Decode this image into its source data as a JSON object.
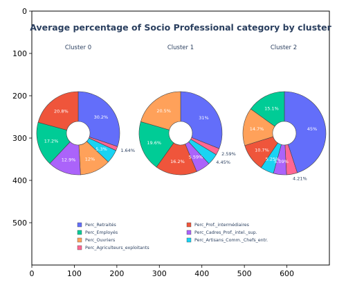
{
  "chart_data": {
    "type": "pie",
    "title": "Average percentage of Socio Professional category by cluster",
    "legend": {
      "placement": "bottom-center",
      "entries": [
        "Perc_Retraités",
        "Perc_Employés",
        "Perc_Ouvriers",
        "Perc_Agriculteurs_exploitants",
        "Perc_Prof._intermédiaires",
        "Perc_Cadres_Prof._intel._sup.",
        "Perc_Artisans_Comm._Chefs_entr."
      ]
    },
    "axes": {
      "x": {
        "range": [
          0,
          700
        ],
        "ticks": [
          "0",
          "100",
          "200",
          "300",
          "400",
          "500",
          "600"
        ]
      },
      "y": {
        "range": [
          600,
          0
        ],
        "ticks": [
          "0",
          "100",
          "200",
          "300",
          "400",
          "500"
        ]
      }
    },
    "pies": [
      {
        "title": "Cluster 0",
        "slices": [
          {
            "category": "Perc_Retraités",
            "value": 30.2,
            "label": "30.2%",
            "color": "#636efa"
          },
          {
            "category": "Perc_Agriculteurs_exploitants",
            "value": 1.64,
            "label": "1.64%",
            "color": "#ff6692"
          },
          {
            "category": "Perc_Artisans_Comm._Chefs_entr.",
            "value": 5.3,
            "label": "5.3%",
            "color": "#19d3f3"
          },
          {
            "category": "Perc_Ouvriers",
            "value": 12.0,
            "label": "12%",
            "color": "#ffa15a"
          },
          {
            "category": "Perc_Cadres_Prof._intel._sup.",
            "value": 12.9,
            "label": "12.9%",
            "color": "#ab63fa"
          },
          {
            "category": "Perc_Employés",
            "value": 17.2,
            "label": "17.2%",
            "color": "#00cc96"
          },
          {
            "category": "Perc_Prof._intermédiaires",
            "value": 20.8,
            "label": "20.8%",
            "color": "#ef553b"
          }
        ]
      },
      {
        "title": "Cluster 1",
        "slices": [
          {
            "category": "Perc_Retraités",
            "value": 31.0,
            "label": "31%",
            "color": "#636efa"
          },
          {
            "category": "Perc_Agriculteurs_exploitants",
            "value": 2.59,
            "label": "2.59%",
            "color": "#ff6692"
          },
          {
            "category": "Perc_Artisans_Comm._Chefs_entr.",
            "value": 4.45,
            "label": "4.45%",
            "color": "#19d3f3"
          },
          {
            "category": "Perc_Cadres_Prof._intel._sup.",
            "value": 5.59,
            "label": "5.59%",
            "color": "#ab63fa"
          },
          {
            "category": "Perc_Prof._intermédiaires",
            "value": 16.2,
            "label": "16.2%",
            "color": "#ef553b"
          },
          {
            "category": "Perc_Employés",
            "value": 19.6,
            "label": "19.6%",
            "color": "#00cc96"
          },
          {
            "category": "Perc_Ouvriers",
            "value": 20.5,
            "label": "20.5%",
            "color": "#ffa15a"
          }
        ]
      },
      {
        "title": "Cluster 2",
        "slices": [
          {
            "category": "Perc_Retraités",
            "value": 45.0,
            "label": "45%",
            "color": "#636efa"
          },
          {
            "category": "Perc_Agriculteurs_exploitants",
            "value": 4.21,
            "label": "4.21%",
            "color": "#ff6692"
          },
          {
            "category": "Perc_Cadres_Prof._intel._sup.",
            "value": 5.09,
            "label": "5.09%",
            "color": "#ab63fa"
          },
          {
            "category": "Perc_Artisans_Comm._Chefs_entr.",
            "value": 5.25,
            "label": "5.25%",
            "color": "#19d3f3"
          },
          {
            "category": "Perc_Prof._intermédiaires",
            "value": 10.7,
            "label": "10.7%",
            "color": "#ef553b"
          },
          {
            "category": "Perc_Ouvriers",
            "value": 14.7,
            "label": "14.7%",
            "color": "#ffa15a"
          },
          {
            "category": "Perc_Employés",
            "value": 15.1,
            "label": "15.1%",
            "color": "#00cc96"
          }
        ]
      }
    ]
  },
  "colors": {
    "title": "#2a3f5f",
    "Perc_Retraités": "#636efa",
    "Perc_Employés": "#00cc96",
    "Perc_Ouvriers": "#ffa15a",
    "Perc_Agriculteurs_exploitants": "#ff6692",
    "Perc_Prof._intermédiaires": "#ef553b",
    "Perc_Cadres_Prof._intel._sup.": "#ab63fa",
    "Perc_Artisans_Comm._Chefs_entr.": "#19d3f3"
  }
}
